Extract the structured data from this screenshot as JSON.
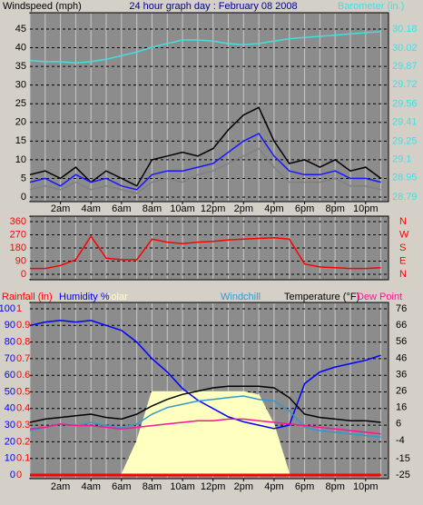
{
  "chart_data": [
    {
      "type": "line",
      "title": "24 hour graph day : February 08 2008",
      "y_label": "Windspeed (mph)",
      "y2_label": "Barometer (in.)",
      "x": [
        0,
        1,
        2,
        3,
        4,
        5,
        6,
        7,
        8,
        9,
        10,
        11,
        12,
        13,
        14,
        15,
        16,
        17,
        18,
        19,
        20,
        21,
        22,
        23
      ],
      "xlim": [
        0,
        23.5
      ],
      "xticks": [
        {
          "value": 2,
          "label": "2am"
        },
        {
          "value": 4,
          "label": "4am"
        },
        {
          "value": 6,
          "label": "6am"
        },
        {
          "value": 8,
          "label": "8am"
        },
        {
          "value": 10,
          "label": "10am"
        },
        {
          "value": 12,
          "label": "12pm"
        },
        {
          "value": 14,
          "label": "2pm"
        },
        {
          "value": 16,
          "label": "4pm"
        },
        {
          "value": 18,
          "label": "6pm"
        },
        {
          "value": 20,
          "label": "8pm"
        },
        {
          "value": 22,
          "label": "10pm"
        }
      ],
      "ylim": [
        0,
        45
      ],
      "yticks": [
        0,
        5,
        10,
        15,
        20,
        25,
        30,
        35,
        40,
        45
      ],
      "y2lim": [
        28.79,
        30.18
      ],
      "y2ticks": [
        28.79,
        28.95,
        29.1,
        29.25,
        29.41,
        29.56,
        29.72,
        29.87,
        30.02,
        30.18
      ],
      "grid": true,
      "series": [
        {
          "color": "#808080",
          "values": [
            2,
            3,
            2,
            4,
            2,
            3,
            2,
            1,
            4,
            5,
            4,
            6,
            7,
            9,
            11,
            13,
            8,
            4,
            4,
            4,
            5,
            3,
            3,
            2
          ]
        },
        {
          "color": "#000000",
          "values": [
            6,
            7,
            5,
            8,
            4,
            7,
            5,
            3,
            10,
            11,
            12,
            11,
            13,
            18,
            22,
            24,
            15,
            9,
            10,
            8,
            10,
            7,
            8,
            5
          ]
        },
        {
          "color": "#1818ff",
          "values": [
            4,
            5,
            3,
            6,
            4,
            5,
            3,
            2,
            6,
            7,
            7,
            8,
            9,
            12,
            15,
            17,
            11,
            7,
            6,
            6,
            7,
            5,
            5,
            4
          ]
        },
        {
          "color": "#40e0e0",
          "axis": "y2",
          "values": [
            29.92,
            29.91,
            29.91,
            29.9,
            29.91,
            29.93,
            29.96,
            29.99,
            30.03,
            30.06,
            30.09,
            30.09,
            30.08,
            30.06,
            30.05,
            30.06,
            30.08,
            30.1,
            30.11,
            30.12,
            30.13,
            30.14,
            30.15,
            30.16
          ]
        }
      ]
    },
    {
      "type": "line",
      "x": [
        0,
        1,
        2,
        3,
        4,
        5,
        6,
        7,
        8,
        9,
        10,
        11,
        12,
        13,
        14,
        15,
        16,
        17,
        18,
        19,
        20,
        21,
        22,
        23
      ],
      "xlim": [
        0,
        23.5
      ],
      "ylim": [
        0,
        360
      ],
      "yticks": [
        0,
        90,
        180,
        270,
        360
      ],
      "y2lim": [
        0,
        360
      ],
      "y2ticks": [
        {
          "value": 0,
          "label": "N"
        },
        {
          "value": 90,
          "label": "E"
        },
        {
          "value": 180,
          "label": "S"
        },
        {
          "value": 270,
          "label": "W"
        },
        {
          "value": 360,
          "label": "N"
        }
      ],
      "grid": true,
      "series": [
        {
          "color": "#ff0000",
          "values": [
            40,
            40,
            60,
            100,
            260,
            110,
            100,
            100,
            240,
            220,
            210,
            220,
            225,
            235,
            240,
            245,
            250,
            240,
            70,
            50,
            45,
            40,
            40,
            45
          ]
        }
      ]
    },
    {
      "type": "line",
      "x": [
        0,
        1,
        2,
        3,
        4,
        5,
        6,
        7,
        8,
        9,
        10,
        11,
        12,
        13,
        14,
        15,
        16,
        17,
        18,
        19,
        20,
        21,
        22,
        23
      ],
      "xlim": [
        0,
        23.5
      ],
      "xticks": [
        {
          "value": 2,
          "label": "2am"
        },
        {
          "value": 4,
          "label": "4am"
        },
        {
          "value": 6,
          "label": "6am"
        },
        {
          "value": 8,
          "label": "8am"
        },
        {
          "value": 10,
          "label": "10am"
        },
        {
          "value": 12,
          "label": "12pm"
        },
        {
          "value": 14,
          "label": "2pm"
        },
        {
          "value": 16,
          "label": "4pm"
        },
        {
          "value": 18,
          "label": "6pm"
        },
        {
          "value": 20,
          "label": "8pm"
        },
        {
          "value": 22,
          "label": "10pm"
        }
      ],
      "ylim": [
        0,
        100
      ],
      "yticks": [
        0,
        10,
        20,
        30,
        40,
        50,
        60,
        70,
        80,
        90,
        100
      ],
      "y3lim": [
        0,
        1
      ],
      "y3ticks": [
        0,
        0.1,
        0.2,
        0.3,
        0.4,
        0.5,
        0.6,
        0.7,
        0.8,
        0.9,
        1
      ],
      "y2lim": [
        -25,
        76
      ],
      "y2ticks": [
        -25,
        -15,
        -4,
        6,
        16,
        26,
        36,
        46,
        56,
        66,
        76
      ],
      "grid": true,
      "series": [
        {
          "name": "Rainfall (in)",
          "color": "#ff0000",
          "axis": "y3",
          "values": [
            0,
            0,
            0,
            0,
            0,
            0,
            0,
            0,
            0,
            0,
            0,
            0,
            0,
            0,
            0,
            0,
            0,
            0,
            0,
            0,
            0,
            0,
            0,
            0
          ]
        },
        {
          "name": "Humidity %",
          "color": "#0000ff",
          "values": [
            90,
            92,
            93,
            92,
            93,
            90,
            87,
            80,
            70,
            62,
            52,
            45,
            40,
            35,
            32,
            30,
            28,
            30,
            55,
            62,
            65,
            67,
            69,
            72
          ]
        },
        {
          "name": "Solar",
          "color": "#ffffc0",
          "style": "area",
          "values": [
            0,
            0,
            0,
            0,
            0,
            0,
            0,
            20,
            50,
            50,
            50,
            50,
            50,
            50,
            50,
            48,
            30,
            0,
            0,
            0,
            0,
            0,
            0,
            0
          ]
        },
        {
          "name": "Windchill",
          "color": "#3399cc",
          "axis": "y2",
          "values": [
            2,
            4,
            6,
            5,
            7,
            5,
            4,
            6,
            12,
            16,
            18,
            20,
            21,
            22,
            23,
            21,
            20,
            14,
            4,
            2,
            1,
            0,
            -1,
            -2
          ]
        },
        {
          "name": "Temperature (°F)",
          "color": "#000000",
          "axis": "y2",
          "values": [
            7,
            9,
            10,
            11,
            12,
            10,
            9,
            12,
            17,
            21,
            24,
            26,
            28,
            29,
            29,
            29,
            28,
            22,
            12,
            10,
            9,
            8,
            8,
            7
          ]
        },
        {
          "name": "Dew Point",
          "color": "#ff1493",
          "axis": "y2",
          "values": [
            3,
            4,
            6,
            5,
            5,
            4,
            3,
            4,
            5,
            6,
            7,
            8,
            8,
            9,
            9,
            8,
            7,
            6,
            5,
            4,
            3,
            2,
            1,
            0
          ]
        }
      ]
    }
  ]
}
